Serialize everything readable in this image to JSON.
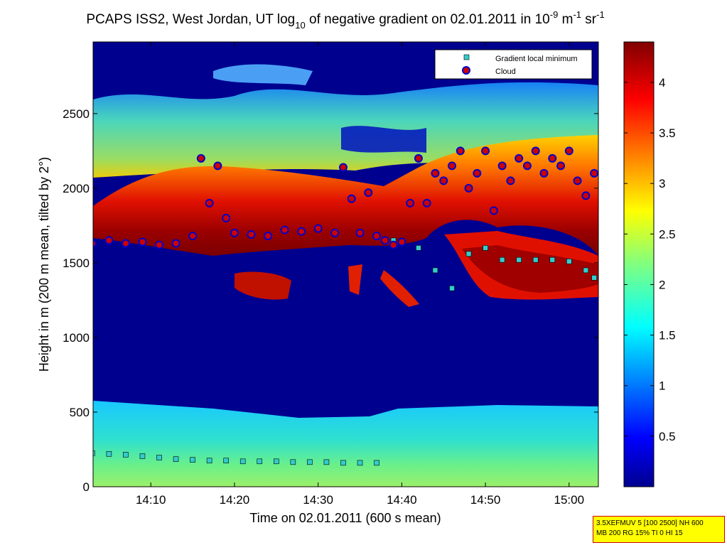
{
  "chart_data": {
    "type": "heatmap",
    "title_parts": {
      "pre": "PCAPS ISS2, West Jordan, UT log",
      "sub": "10",
      "mid": " of negative gradient on 02.01.2011 in 10",
      "sup1": "-9",
      "unit_a": " m",
      "sup2": "-1",
      "unit_b": " sr",
      "sup3": "-1"
    },
    "xlabel": "Time on 02.01.2011 (600 s mean)",
    "ylabel": "Height in m (200 m mean, tilted by 2°)",
    "x_range_min": [
      3.1,
      63.5
    ],
    "ylim": [
      0,
      2980
    ],
    "x_ticks": [
      {
        "min": 10,
        "label": "14:10"
      },
      {
        "min": 20,
        "label": "14:20"
      },
      {
        "min": 30,
        "label": "14:30"
      },
      {
        "min": 40,
        "label": "14:40"
      },
      {
        "min": 50,
        "label": "14:50"
      },
      {
        "min": 60,
        "label": "15:00"
      }
    ],
    "y_ticks": [
      0,
      500,
      1000,
      1500,
      2000,
      2500
    ],
    "colorbar": {
      "range": [
        0,
        4.4
      ],
      "ticks": [
        "0.5",
        "1",
        "1.5",
        "2",
        "2.5",
        "3",
        "3.5",
        "4"
      ]
    },
    "legend": {
      "placement": "top-right",
      "entries": [
        {
          "name": "Gradient local minimum",
          "marker": "square",
          "color": "#33cccc"
        },
        {
          "name": "Cloud",
          "marker": "circle",
          "color": "#cc0000",
          "edge": "#0000cc"
        }
      ]
    },
    "series": [
      {
        "name": "Gradient local minimum",
        "x": [
          3,
          5,
          7,
          9,
          11,
          13,
          15,
          17,
          19,
          21,
          23,
          25,
          27,
          29,
          31,
          33,
          35,
          37,
          39,
          42,
          44,
          46,
          48,
          50,
          52,
          54,
          56,
          58,
          60,
          62,
          63
        ],
        "y": [
          225,
          220,
          215,
          205,
          195,
          185,
          180,
          175,
          175,
          170,
          170,
          170,
          165,
          165,
          165,
          160,
          160,
          160,
          1650,
          1600,
          1450,
          1330,
          1560,
          1600,
          1520,
          1520,
          1520,
          1520,
          1510,
          1450,
          1400
        ]
      },
      {
        "name": "Cloud",
        "x": [
          3,
          5,
          7,
          9,
          11,
          13,
          15,
          16,
          17,
          18,
          19,
          20,
          22,
          24,
          26,
          28,
          30,
          32,
          33,
          34,
          35,
          36,
          37,
          38,
          39,
          40,
          41,
          42,
          43,
          44,
          45,
          46,
          47,
          48,
          49,
          50,
          51,
          52,
          53,
          54,
          55,
          56,
          57,
          58,
          59,
          60,
          61,
          62,
          63
        ],
        "y": [
          1630,
          1650,
          1630,
          1640,
          1620,
          1630,
          1680,
          2200,
          1900,
          2150,
          1800,
          1700,
          1690,
          1680,
          1720,
          1710,
          1730,
          1700,
          2140,
          1930,
          1700,
          1970,
          1680,
          1650,
          1620,
          1640,
          1900,
          2200,
          1900,
          2100,
          2050,
          2150,
          2250,
          2000,
          2100,
          2250,
          1850,
          2150,
          2050,
          2200,
          2150,
          2250,
          2100,
          2200,
          2150,
          2250,
          2050,
          1950,
          2100
        ]
      }
    ],
    "annotation": {
      "line1": "3.5XEFMUV 5 [100 2500] NH 600",
      "line2": "MB 200 RG 15% TI 0 HI 15"
    }
  }
}
